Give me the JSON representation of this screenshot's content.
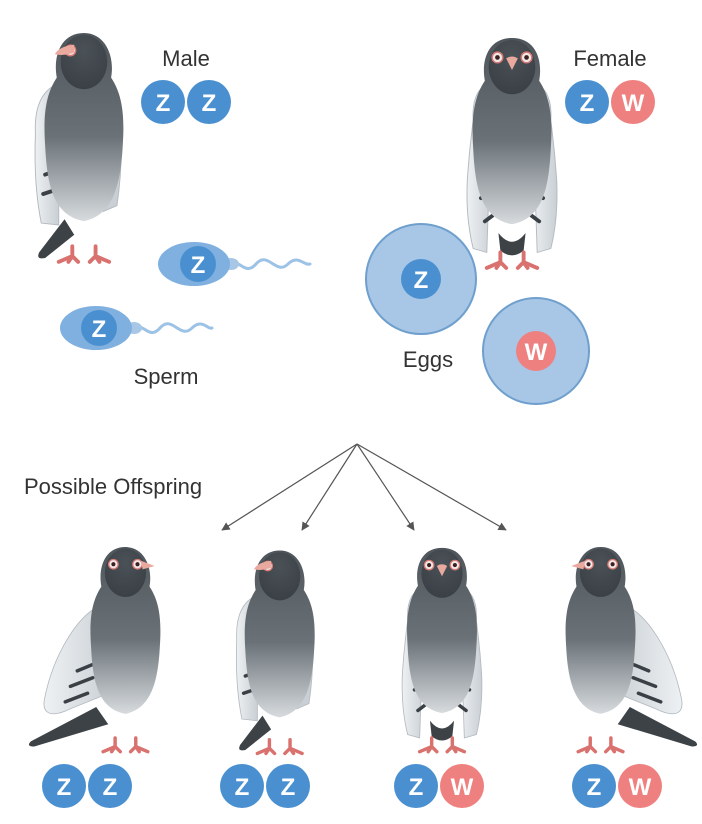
{
  "parents": {
    "male": {
      "label": "Male",
      "chromosomes": [
        "Z",
        "Z"
      ]
    },
    "female": {
      "label": "Female",
      "chromosomes": [
        "Z",
        "W"
      ]
    }
  },
  "gametes": {
    "sperm_label": "Sperm",
    "eggs_label": "Eggs",
    "sperm": [
      "Z",
      "Z"
    ],
    "eggs": [
      "Z",
      "W"
    ]
  },
  "offspring": {
    "label": "Possible Offspring",
    "items": [
      {
        "chromosomes": [
          "Z",
          "Z"
        ]
      },
      {
        "chromosomes": [
          "Z",
          "Z"
        ]
      },
      {
        "chromosomes": [
          "Z",
          "W"
        ]
      },
      {
        "chromosomes": [
          "Z",
          "W"
        ]
      }
    ]
  },
  "colors": {
    "z_chromosome": "#4a90d0",
    "w_chromosome": "#ef8080",
    "egg_fill": "#a8c7e6",
    "egg_stroke": "#6f9fcd",
    "sperm_head": "#7fb0e0",
    "pigeon_body": "#5a6268",
    "pigeon_dark": "#3c4246",
    "pigeon_wing": "#d8dde2",
    "pigeon_feet": "#d9726e",
    "arrow": "#555555"
  }
}
